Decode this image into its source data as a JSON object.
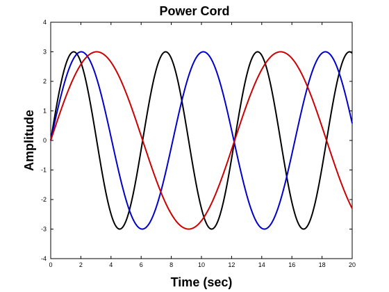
{
  "chart_data": {
    "type": "line",
    "title": "Power Cord",
    "xlabel": "Time (sec)",
    "ylabel": "Amplitude",
    "xlim": [
      0,
      20
    ],
    "ylim": [
      -4,
      4
    ],
    "xticks": [
      "0",
      "2",
      "4",
      "6",
      "8",
      "10",
      "12",
      "14",
      "16",
      "18",
      "20"
    ],
    "yticks": [
      "-4",
      "-3",
      "-2",
      "-1",
      "0",
      "1",
      "2",
      "3",
      "4"
    ],
    "grid": false,
    "legend": "none",
    "series": [
      {
        "color": "#000000",
        "amplitude": 3,
        "period": 6.1,
        "x": [
          0,
          0.5,
          1,
          1.5,
          2,
          2.5,
          3,
          3.5,
          4,
          4.5,
          5,
          5.5,
          6,
          6.5,
          7,
          7.5,
          8,
          8.5,
          9,
          9.5,
          10,
          10.5,
          11,
          11.5,
          12,
          12.5,
          13,
          13.5,
          14,
          14.5,
          15,
          15.5,
          16,
          16.5,
          17,
          17.5,
          18,
          18.5,
          19,
          19.5,
          20
        ],
        "y": [
          0,
          1.5,
          2.6,
          3,
          2.7,
          1.8,
          0.5,
          -0.9,
          -2.1,
          -2.9,
          -2.9,
          -2.2,
          -0.9,
          0.5,
          1.8,
          2.8,
          2.9,
          2.2,
          0.9,
          -0.5,
          -1.8,
          -2.7,
          -3,
          -2.6,
          -1.7,
          -0.4,
          1,
          2.2,
          2.9,
          2.9,
          2.2,
          1,
          -0.4,
          -1.7,
          -2.7,
          -3,
          -2.5,
          -1.4,
          0,
          1.4,
          2.5
        ]
      },
      {
        "color": "#0000cc",
        "amplitude": 3,
        "period": 8.1,
        "x": [
          0,
          0.5,
          1,
          1.5,
          2,
          2.5,
          3,
          3.5,
          4,
          4.5,
          5,
          5.5,
          6,
          6.5,
          7,
          7.5,
          8,
          8.5,
          9,
          9.5,
          10,
          10.5,
          11,
          11.5,
          12,
          12.5,
          13,
          13.5,
          14,
          14.5,
          15,
          15.5,
          16,
          16.5,
          17,
          17.5,
          18,
          18.5,
          19,
          19.5,
          20
        ],
        "y": [
          0,
          1.1,
          2.1,
          2.7,
          3,
          2.9,
          2.5,
          1.8,
          0.9,
          -0.1,
          -1,
          -1.9,
          -2.6,
          -3,
          -3,
          -2.7,
          -2.1,
          -1.2,
          -0.2,
          0.8,
          1.7,
          2.4,
          2.9,
          3,
          2.8,
          2.3,
          1.5,
          0.6,
          -0.4,
          -1.4,
          -2.2,
          -2.8,
          -3,
          -2.9,
          -2.4,
          -1.7,
          -0.8,
          0.2,
          1.2,
          2,
          2.7
        ]
      },
      {
        "color": "#cc0000",
        "amplitude": 3,
        "period": 12.2,
        "x": [
          0,
          0.5,
          1,
          1.5,
          2,
          2.5,
          3,
          3.5,
          4,
          4.5,
          5,
          5.5,
          6,
          6.5,
          7,
          7.5,
          8,
          8.5,
          9,
          9.5,
          10,
          10.5,
          11,
          11.5,
          12,
          12.5,
          13,
          13.5,
          14,
          14.5,
          15,
          15.5,
          16,
          16.5,
          17,
          17.5,
          18,
          18.5,
          19,
          19.5,
          20
        ],
        "y": [
          0,
          0.8,
          1.5,
          2.1,
          2.6,
          2.9,
          3,
          2.9,
          2.7,
          2.2,
          1.6,
          0.9,
          0.2,
          -0.5,
          -1.2,
          -1.9,
          -2.4,
          -2.8,
          -3,
          -3,
          -2.8,
          -2.5,
          -1.9,
          -1.3,
          -0.6,
          0.1,
          0.8,
          1.5,
          2.1,
          2.6,
          2.9,
          3,
          2.9,
          2.7,
          2.2,
          1.6,
          0.9,
          0.2,
          -0.6,
          -1.3,
          -1.9
        ]
      }
    ]
  }
}
